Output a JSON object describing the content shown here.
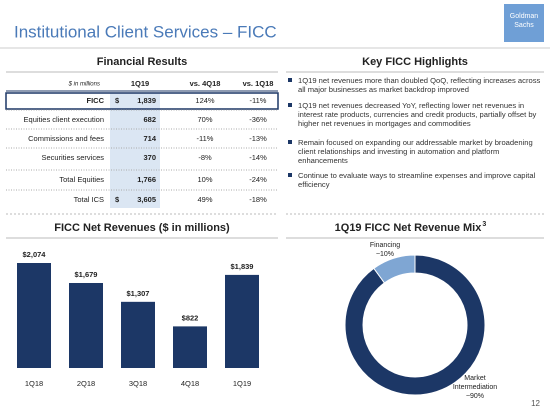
{
  "header": {
    "title": "Institutional Client Services – FICC",
    "logo": [
      "Goldman",
      "Sachs"
    ]
  },
  "financial_results": {
    "title": "Financial Results",
    "columns": [
      "$ in millions",
      "1Q19",
      "vs. 4Q18",
      "vs. 1Q18"
    ],
    "rows": [
      {
        "label": "FICC",
        "currency": "$",
        "value": "1,839",
        "vs_4q18": "124%",
        "vs_1q18": "-11%"
      },
      {
        "label": "Equities client execution",
        "value": "682",
        "vs_4q18": "70%",
        "vs_1q18": "-36%"
      },
      {
        "label": "Commissions and fees",
        "value": "714",
        "vs_4q18": "-11%",
        "vs_1q18": "-13%"
      },
      {
        "label": "Securities services",
        "value": "370",
        "vs_4q18": "-8%",
        "vs_1q18": "-14%"
      },
      {
        "label": "Total Equities",
        "value": "1,766",
        "vs_4q18": "10%",
        "vs_1q18": "-24%"
      },
      {
        "label": "Total ICS",
        "currency": "$",
        "value": "3,605",
        "vs_4q18": "49%",
        "vs_1q18": "-18%"
      }
    ]
  },
  "highlights": {
    "title": "Key FICC Highlights",
    "bullets": [
      "1Q19 net revenues more than doubled QoQ, reflecting increases across all major businesses as market backdrop improved",
      "1Q19 net revenues decreased YoY, reflecting lower net revenues in interest rate products, currencies and credit products, partially offset by higher net revenues in mortgages and commodities",
      "Remain focused on expanding our addressable market by broadening client relationships and investing in automation and platform enhancements",
      "Continue to evaluate ways to streamline expenses and improve capital efficiency"
    ]
  },
  "chart_data": [
    {
      "type": "bar",
      "title": "FICC Net Revenues ($ in millions)",
      "categories": [
        "1Q18",
        "2Q18",
        "3Q18",
        "4Q18",
        "1Q19"
      ],
      "values": [
        2074,
        1679,
        1307,
        822,
        1839
      ],
      "value_labels": [
        "$2,074",
        "$1,679",
        "$1,307",
        "$822",
        "$1,839"
      ],
      "color": "#1c3766"
    },
    {
      "type": "pie",
      "title": "1Q19 FICC Net Revenue Mix",
      "footnote": "3",
      "categories": [
        [
          "Market",
          "Intermediation"
        ],
        [
          "Financing"
        ]
      ],
      "values": [
        90,
        10
      ],
      "value_labels": [
        "~90%",
        "~10%"
      ],
      "colors": [
        "#1c3766",
        "#7fa6d3"
      ],
      "donut": true
    }
  ],
  "page_number": "12"
}
